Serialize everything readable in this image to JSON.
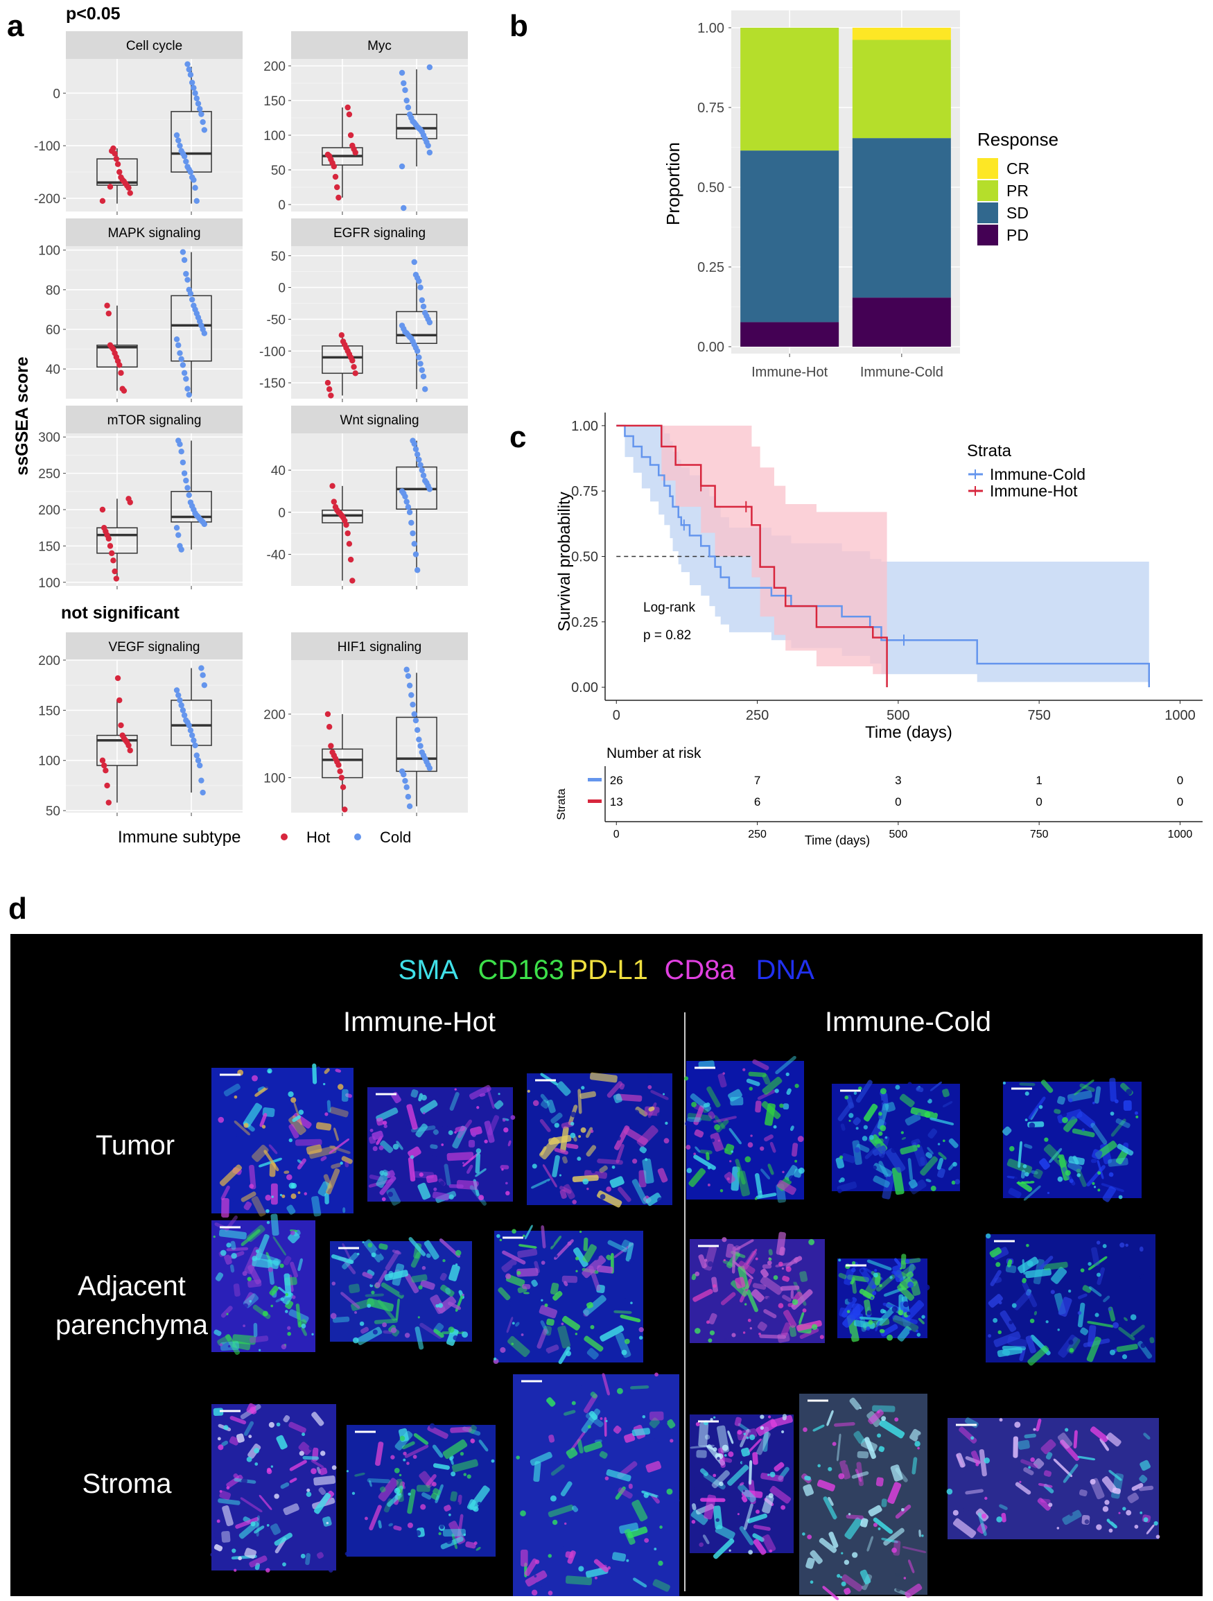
{
  "panel_labels": {
    "a": "a",
    "b": "b",
    "c": "c",
    "d": "d"
  },
  "colors": {
    "hot": "#d7263d",
    "cold": "#6495ed",
    "cold_light": "#c6d8f5",
    "hot_light": "#f9c2cb",
    "facet_bg": "#ebebeb",
    "strip_bg": "#d9d9d9",
    "CR": "#fde725",
    "PR": "#b5de2b",
    "SD": "#31688e",
    "PD": "#440154"
  },
  "panel_a": {
    "sig_header": "p<0.05",
    "nonsig_header": "not significant",
    "ylabel": "ssGSEA score",
    "legend_title": "Immune subtype",
    "legend_items": [
      "Hot",
      "Cold"
    ]
  },
  "chart_data": [
    {
      "type": "box",
      "facet": "Cell cycle",
      "ylim": [
        -225,
        65
      ],
      "ticks": [
        -200,
        -100,
        0
      ],
      "tick_labels": [
        "-200",
        "-100",
        "0"
      ],
      "groups": [
        {
          "name": "Hot",
          "q1": -175,
          "median": -170,
          "q3": -125,
          "wlow": -210,
          "whigh": -105,
          "points": [
            -205,
            -190,
            -180,
            -176,
            -172,
            -168,
            -165,
            -160,
            -150,
            -135,
            -125,
            -115,
            -105,
            -110,
            -178
          ]
        },
        {
          "name": "Cold",
          "q1": -150,
          "median": -115,
          "q3": -35,
          "wlow": -210,
          "whigh": 50,
          "points": [
            -205,
            -180,
            -165,
            -160,
            -150,
            -145,
            -140,
            -130,
            -120,
            -115,
            -110,
            -100,
            -90,
            -80,
            -70,
            -55,
            -40,
            -30,
            -20,
            -10,
            0,
            10,
            20,
            35,
            45,
            55
          ]
        }
      ]
    },
    {
      "type": "box",
      "facet": "Myc",
      "ylim": [
        -10,
        210
      ],
      "ticks": [
        0,
        50,
        100,
        150,
        200
      ],
      "tick_labels": [
        "0",
        "50",
        "100",
        "150",
        "200"
      ],
      "groups": [
        {
          "name": "Hot",
          "q1": 57,
          "median": 70,
          "q3": 82,
          "wlow": 10,
          "whigh": 140,
          "points": [
            10,
            25,
            40,
            55,
            60,
            65,
            70,
            72,
            75,
            80,
            85,
            100,
            130,
            140
          ]
        },
        {
          "name": "Cold",
          "q1": 95,
          "median": 110,
          "q3": 130,
          "wlow": 55,
          "whigh": 195,
          "points": [
            -5,
            55,
            75,
            85,
            90,
            95,
            100,
            105,
            108,
            110,
            112,
            115,
            118,
            120,
            125,
            130,
            140,
            150,
            165,
            175,
            190,
            198
          ]
        }
      ]
    },
    {
      "type": "box",
      "facet": "MAPK signaling",
      "ylim": [
        25,
        102
      ],
      "ticks": [
        40,
        60,
        80,
        100
      ],
      "tick_labels": [
        "40",
        "60",
        "80",
        "100"
      ],
      "groups": [
        {
          "name": "Hot",
          "q1": 41,
          "median": 51,
          "q3": 52,
          "wlow": 29,
          "whigh": 72,
          "points": [
            29,
            30,
            38,
            42,
            44,
            46,
            48,
            50,
            51,
            52,
            68,
            72
          ]
        },
        {
          "name": "Cold",
          "q1": 44,
          "median": 62,
          "q3": 77,
          "wlow": 27,
          "whigh": 99,
          "points": [
            27,
            30,
            35,
            38,
            42,
            45,
            48,
            52,
            55,
            58,
            60,
            62,
            64,
            66,
            68,
            70,
            72,
            75,
            78,
            80,
            85,
            88,
            95,
            99
          ]
        }
      ]
    },
    {
      "type": "box",
      "facet": "EGFR signaling",
      "ylim": [
        -175,
        65
      ],
      "ticks": [
        -150,
        -100,
        -50,
        0,
        50
      ],
      "tick_labels": [
        "-150",
        "-100",
        "-50",
        "0",
        "50"
      ],
      "groups": [
        {
          "name": "Hot",
          "q1": -135,
          "median": -110,
          "q3": -92,
          "wlow": -170,
          "whigh": -75,
          "points": [
            -170,
            -160,
            -150,
            -135,
            -125,
            -115,
            -110,
            -105,
            -100,
            -95,
            -90,
            -85,
            -75
          ]
        },
        {
          "name": "Cold",
          "q1": -88,
          "median": -75,
          "q3": -38,
          "wlow": -160,
          "whigh": 20,
          "points": [
            -160,
            -140,
            -130,
            -120,
            -110,
            -100,
            -95,
            -90,
            -85,
            -80,
            -78,
            -75,
            -72,
            -70,
            -65,
            -60,
            -55,
            -50,
            -45,
            -40,
            -30,
            -20,
            0,
            10,
            15,
            20,
            40
          ]
        }
      ]
    },
    {
      "type": "box",
      "facet": "mTOR signaling",
      "ylim": [
        95,
        305
      ],
      "ticks": [
        100,
        150,
        200,
        250,
        300
      ],
      "tick_labels": [
        "100",
        "150",
        "200",
        "250",
        "300"
      ],
      "groups": [
        {
          "name": "Hot",
          "q1": 140,
          "median": 165,
          "q3": 175,
          "wlow": 105,
          "whigh": 215,
          "points": [
            105,
            115,
            130,
            140,
            150,
            160,
            165,
            170,
            175,
            200,
            210,
            215
          ]
        },
        {
          "name": "Cold",
          "q1": 183,
          "median": 190,
          "q3": 225,
          "wlow": 145,
          "whigh": 295,
          "points": [
            145,
            150,
            165,
            175,
            180,
            183,
            185,
            187,
            190,
            192,
            195,
            200,
            205,
            210,
            220,
            230,
            240,
            250,
            265,
            280,
            290,
            295
          ]
        }
      ]
    },
    {
      "type": "box",
      "facet": "Wnt signaling",
      "ylim": [
        -70,
        75
      ],
      "ticks": [
        -40,
        0,
        40
      ],
      "tick_labels": [
        "-40",
        "0",
        "40"
      ],
      "groups": [
        {
          "name": "Hot",
          "q1": -10,
          "median": -3,
          "q3": 2,
          "wlow": -65,
          "whigh": 25,
          "points": [
            -65,
            -45,
            -30,
            -20,
            -12,
            -8,
            -5,
            -3,
            -1,
            0,
            2,
            5,
            10,
            25
          ]
        },
        {
          "name": "Cold",
          "q1": 3,
          "median": 22,
          "q3": 43,
          "wlow": -55,
          "whigh": 68,
          "points": [
            -55,
            -40,
            -30,
            -20,
            -10,
            0,
            5,
            10,
            15,
            18,
            20,
            22,
            25,
            28,
            30,
            35,
            40,
            45,
            50,
            55,
            60,
            65,
            68
          ]
        }
      ]
    },
    {
      "type": "box",
      "facet": "VEGF signaling",
      "ylim": [
        48,
        200
      ],
      "ticks": [
        50,
        100,
        150,
        200
      ],
      "tick_labels": [
        "50",
        "100",
        "150",
        "200"
      ],
      "groups": [
        {
          "name": "Hot",
          "q1": 95,
          "median": 120,
          "q3": 125,
          "wlow": 58,
          "whigh": 160,
          "points": [
            58,
            75,
            90,
            95,
            100,
            110,
            115,
            118,
            120,
            122,
            125,
            135,
            160,
            182
          ]
        },
        {
          "name": "Cold",
          "q1": 115,
          "median": 135,
          "q3": 160,
          "wlow": 68,
          "whigh": 192,
          "points": [
            68,
            80,
            95,
            100,
            105,
            115,
            120,
            125,
            130,
            135,
            138,
            140,
            145,
            150,
            155,
            160,
            165,
            170,
            175,
            185,
            192
          ]
        }
      ]
    },
    {
      "type": "box",
      "facet": "HIF1 signaling",
      "ylim": [
        45,
        285
      ],
      "ticks": [
        100,
        200
      ],
      "tick_labels": [
        "100",
        "200"
      ],
      "groups": [
        {
          "name": "Hot",
          "q1": 100,
          "median": 128,
          "q3": 145,
          "wlow": 50,
          "whigh": 200,
          "points": [
            50,
            85,
            100,
            110,
            120,
            125,
            130,
            135,
            140,
            150,
            180,
            200
          ]
        },
        {
          "name": "Cold",
          "q1": 110,
          "median": 130,
          "q3": 195,
          "wlow": 55,
          "whigh": 265,
          "points": [
            55,
            70,
            85,
            95,
            105,
            110,
            115,
            120,
            125,
            130,
            135,
            140,
            150,
            160,
            175,
            190,
            200,
            215,
            230,
            245,
            260,
            270
          ]
        }
      ]
    },
    {
      "type": "bar",
      "stacked": true,
      "ylabel": "Proportion",
      "categories": [
        "Immune-Hot",
        "Immune-Cold"
      ],
      "ylim": [
        0,
        1
      ],
      "ticks": [
        0,
        0.25,
        0.5,
        0.75,
        1
      ],
      "tick_labels": [
        "0.00",
        "0.25",
        "0.50",
        "0.75",
        "1.00"
      ],
      "legend_title": "Response",
      "legend": [
        "CR",
        "PR",
        "SD",
        "PD"
      ],
      "series": [
        {
          "name": "PD",
          "values": [
            0.077,
            0.154
          ]
        },
        {
          "name": "SD",
          "values": [
            0.538,
            0.5
          ]
        },
        {
          "name": "PR",
          "values": [
            0.385,
            0.308
          ]
        },
        {
          "name": "CR",
          "values": [
            0,
            0.038
          ]
        }
      ]
    },
    {
      "type": "line",
      "title": "",
      "xlabel": "Time (days)",
      "ylabel": "Survival probability",
      "xlim": [
        -20,
        1040
      ],
      "ylim": [
        -0.05,
        1.05
      ],
      "xticks": [
        0,
        250,
        500,
        750,
        1000
      ],
      "xtick_labels": [
        "0",
        "250",
        "500",
        "750",
        "1000"
      ],
      "yticks": [
        0,
        0.25,
        0.5,
        0.75,
        1
      ],
      "ytick_labels": [
        "0.00",
        "0.25",
        "0.50",
        "0.75",
        "1.00"
      ],
      "legend_title": "Strata",
      "annotation": [
        "Log-rank",
        "p = 0.82"
      ],
      "median_line": {
        "y": 0.5,
        "x": [
          0,
          240
        ]
      },
      "series": [
        {
          "name": "Immune-Cold",
          "x": [
            0,
            15,
            30,
            45,
            60,
            75,
            85,
            95,
            100,
            110,
            115,
            130,
            150,
            165,
            175,
            185,
            200,
            230,
            245,
            275,
            310,
            350,
            400,
            450,
            470,
            640,
            945
          ],
          "y": [
            1,
            0.96,
            0.92,
            0.88,
            0.85,
            0.81,
            0.77,
            0.73,
            0.69,
            0.65,
            0.62,
            0.58,
            0.54,
            0.5,
            0.46,
            0.42,
            0.38,
            0.38,
            0.38,
            0.35,
            0.31,
            0.31,
            0.27,
            0.23,
            0.18,
            0.09,
            0.0
          ],
          "lower": [
            1,
            0.88,
            0.82,
            0.76,
            0.71,
            0.66,
            0.62,
            0.57,
            0.52,
            0.47,
            0.44,
            0.39,
            0.35,
            0.31,
            0.27,
            0.24,
            0.21,
            0.21,
            0.21,
            0.18,
            0.15,
            0.15,
            0.12,
            0.09,
            0.05,
            0.02,
            0.02
          ],
          "upper": [
            1,
            1,
            1,
            1,
            1,
            1,
            0.97,
            0.94,
            0.9,
            0.87,
            0.84,
            0.81,
            0.77,
            0.73,
            0.69,
            0.65,
            0.61,
            0.61,
            0.61,
            0.58,
            0.55,
            0.55,
            0.52,
            0.49,
            0.48,
            0.48,
            0.48
          ],
          "censor_x": [
            120,
            510
          ]
        },
        {
          "name": "Immune-Hot",
          "x": [
            0,
            80,
            105,
            150,
            175,
            240,
            255,
            280,
            300,
            355,
            455,
            480
          ],
          "y": [
            1,
            0.92,
            0.85,
            0.77,
            0.69,
            0.62,
            0.46,
            0.38,
            0.31,
            0.23,
            0.19,
            0.0
          ],
          "lower": [
            1,
            0.79,
            0.69,
            0.59,
            0.5,
            0.42,
            0.27,
            0.2,
            0.14,
            0.08,
            0.05,
            0.05
          ],
          "upper": [
            1,
            1,
            1,
            1,
            1,
            0.92,
            0.84,
            0.77,
            0.7,
            0.67,
            0.67,
            0.67
          ],
          "censor_x": [
            150,
            230
          ]
        }
      ],
      "risk_table": {
        "title": "Number at risk",
        "strata_label": "Strata",
        "xlabel": "Time (days)",
        "times": [
          0,
          250,
          500,
          750,
          1000
        ],
        "rows": [
          {
            "name": "Immune-Cold",
            "values": [
              "26",
              "7",
              "3",
              "1",
              "0"
            ]
          },
          {
            "name": "Immune-Hot",
            "values": [
              "13",
              "6",
              "0",
              "0",
              "0"
            ]
          }
        ]
      }
    }
  ],
  "panel_d": {
    "markers": [
      {
        "name": "SMA",
        "color": "#40e0e8"
      },
      {
        "name": "CD163",
        "color": "#3de04a"
      },
      {
        "name": "PD-L1",
        "color": "#f0e040"
      },
      {
        "name": "CD8a",
        "color": "#e040e0"
      },
      {
        "name": "DNA",
        "color": "#2030f0"
      }
    ],
    "columns": [
      "Immune-Hot",
      "Immune-Cold"
    ],
    "rows": [
      "Tumor",
      "Adjacent\nparenchyma",
      "Stroma"
    ],
    "row_line1": [
      "Tumor",
      "Adjacent",
      "Stroma"
    ],
    "row_line2": [
      "",
      "parenchyma",
      ""
    ]
  }
}
